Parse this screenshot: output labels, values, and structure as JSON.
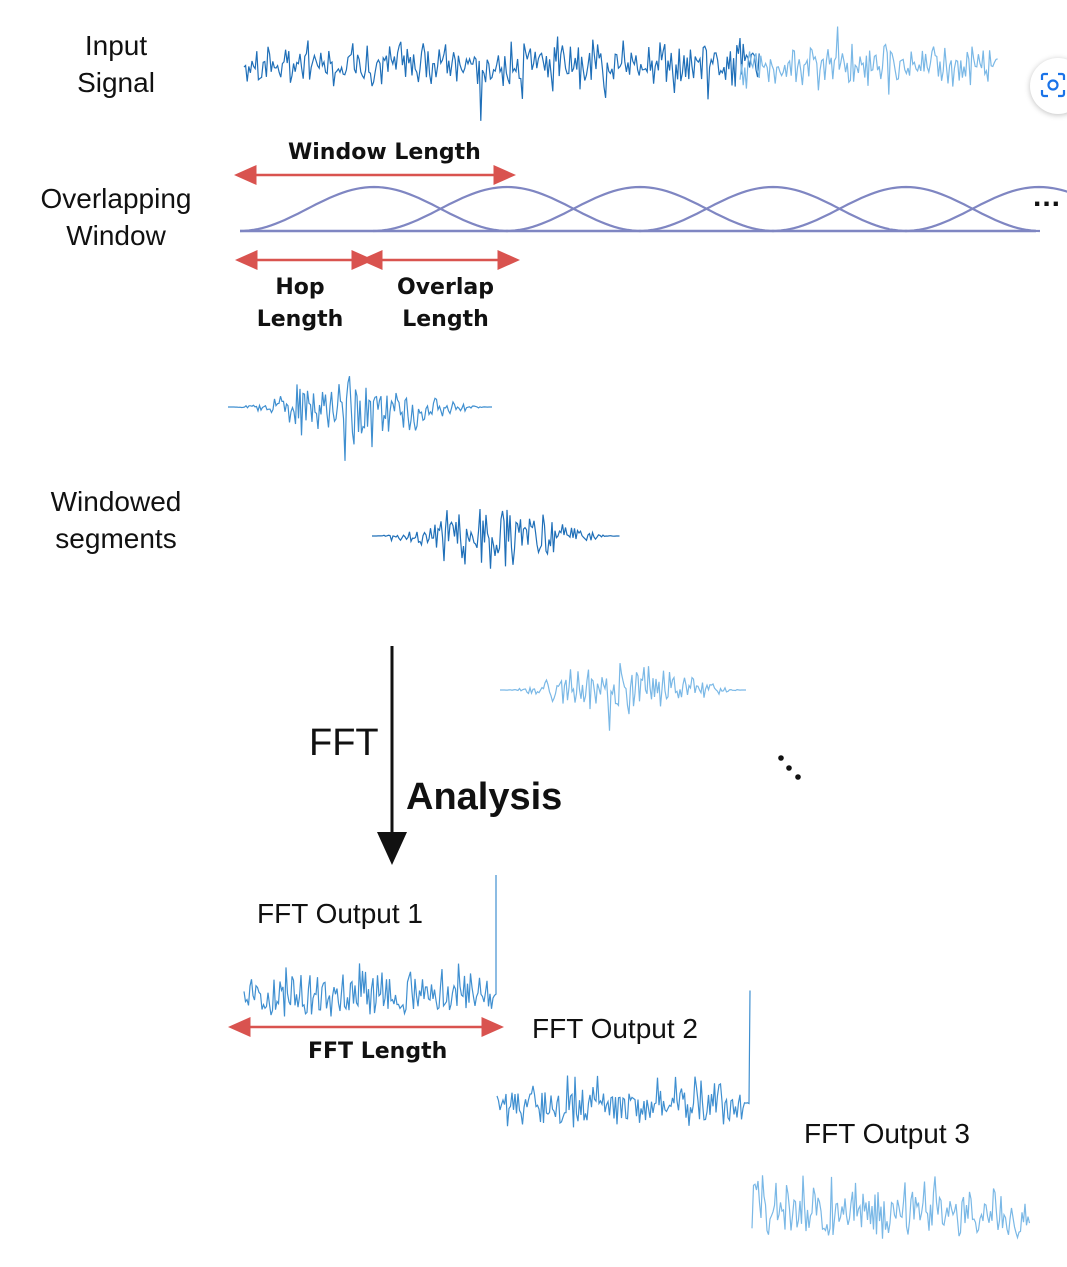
{
  "labels": {
    "input_signal": [
      "Input",
      "Signal"
    ],
    "overlapping_window": [
      "Overlapping",
      "Window"
    ],
    "windowed_segments": [
      "Windowed",
      "segments"
    ],
    "window_length": "Window Length",
    "hop_length": [
      "Hop",
      "Length"
    ],
    "overlap_length": [
      "Overlap",
      "Length"
    ],
    "fft": "FFT",
    "analysis": "Analysis",
    "fft_output_1": "FFT Output 1",
    "fft_output_2": "FFT Output 2",
    "fft_output_3": "FFT Output 3",
    "fft_length": "FFT Length",
    "ellipsis": "..."
  },
  "colors": {
    "signal_dark": "#1f6fb8",
    "signal_mid": "#3f8fd0",
    "signal_light": "#7ab8e6",
    "window_curve": "#7f86c2",
    "arrow_red": "#d9534f",
    "arrow_black": "#111111"
  },
  "diagram": {
    "window_count": 6,
    "segment_count": 3,
    "fft_output_count": 3
  },
  "icons": {
    "lens": "google-lens-icon"
  }
}
